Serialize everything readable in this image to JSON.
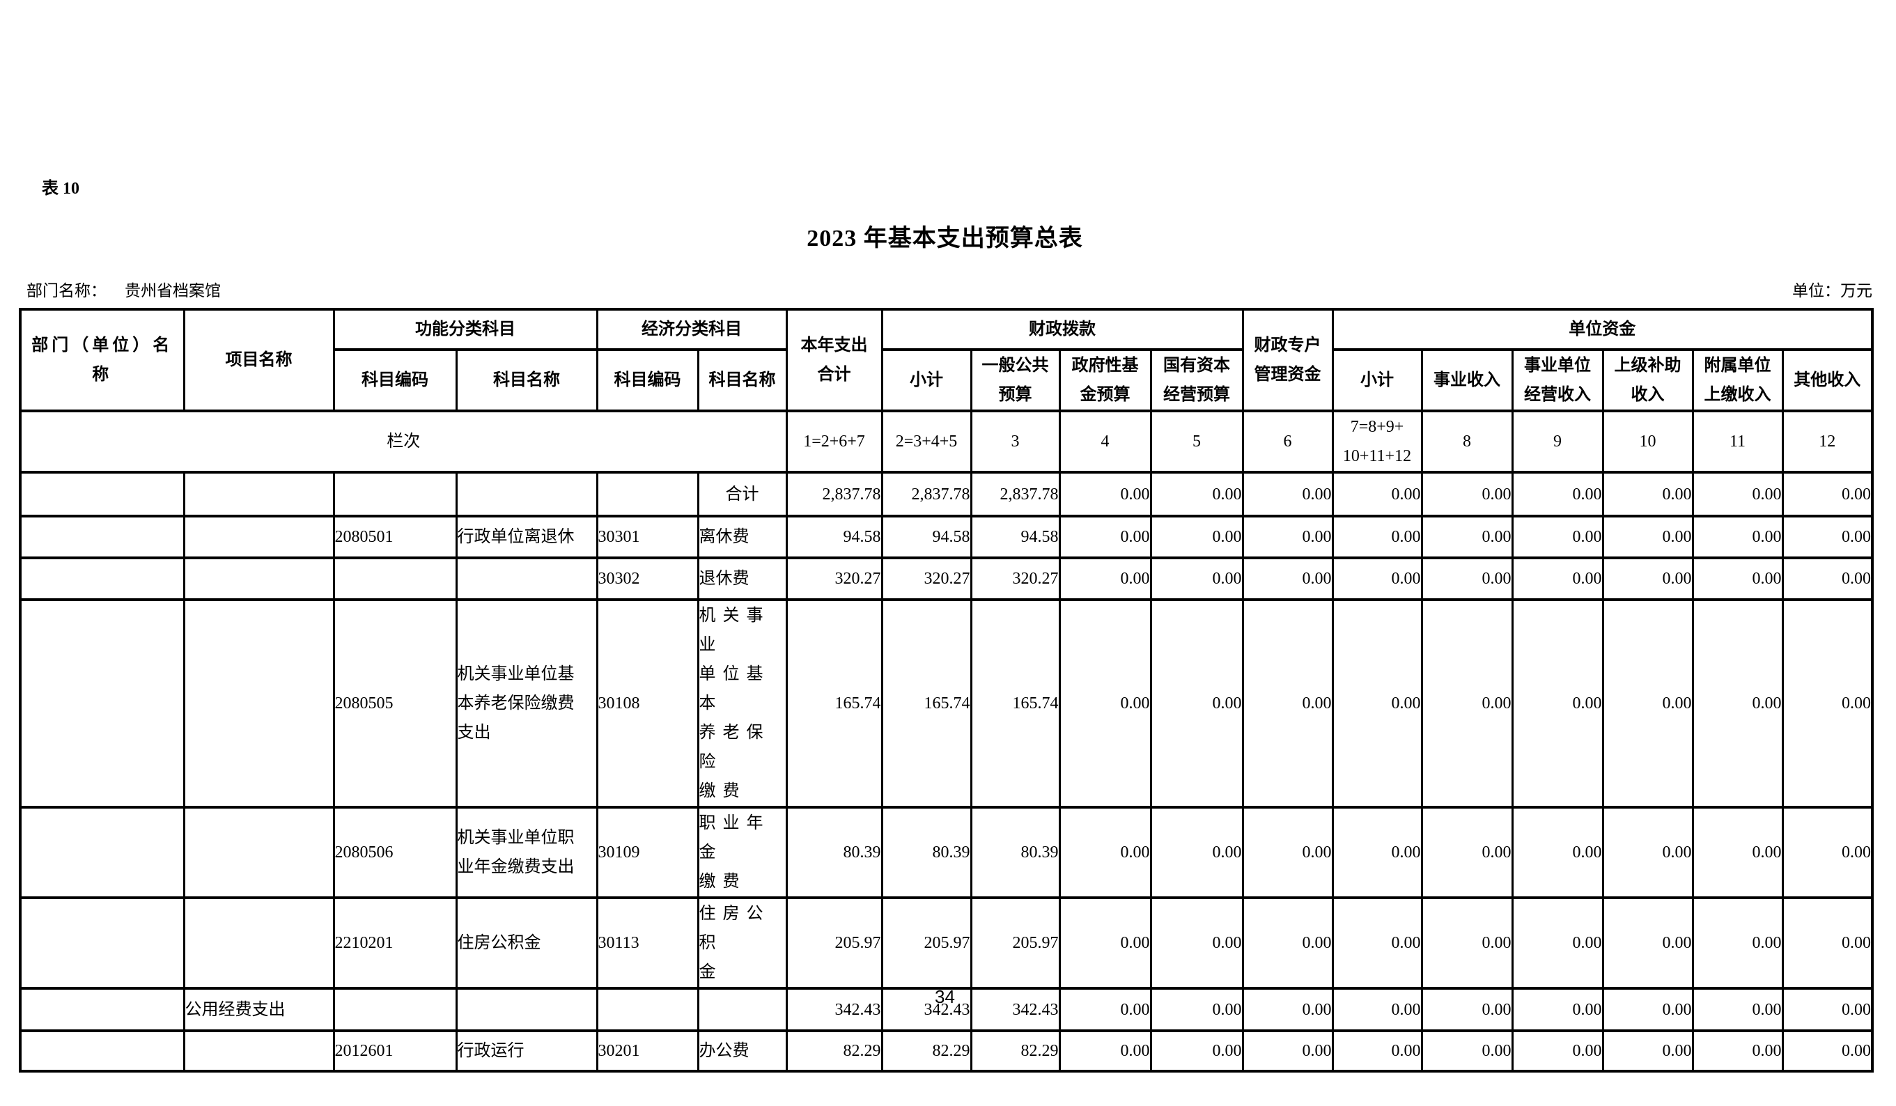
{
  "page": {
    "table_label": "表 10",
    "title": "2023 年基本支出预算总表",
    "department_label": "部门名称：",
    "department_name": "贵州省档案馆",
    "unit_label": "单位：万元",
    "page_number": "34"
  },
  "table": {
    "header": {
      "col_department": "部门（单位）名称",
      "col_project": "项目名称",
      "group_functional": "功能分类科目",
      "group_economic": "经济分类科目",
      "col_code_functional": "科目编码",
      "col_name_functional": "科目名称",
      "col_code_economic": "科目编码",
      "col_name_economic": "科目名称",
      "col_year_total": "本年支出\n合计",
      "group_fiscal": "财政拨款",
      "fiscal_subtotal": "小计",
      "fiscal_general_budget": "一般公共\n预算",
      "fiscal_gov_fund_budget": "政府性基\n金预算",
      "fiscal_state_capital_budget": "国有资本\n经营预算",
      "col_special_account": "财政专户\n管理资金",
      "group_unit_funds": "单位资金",
      "unit_subtotal": "小计",
      "unit_business_income": "事业收入",
      "unit_business_operating_income": "事业单位\n经营收入",
      "unit_superior_subsidy_income": "上级补助\n收入",
      "unit_affiliated_remit_income": "附属单位\n上缴收入",
      "unit_other_income": "其他收入"
    },
    "index_row": {
      "label": "栏次",
      "cols": [
        "1=2+6+7",
        "2=3+4+5",
        "3",
        "4",
        "5",
        "6",
        "7=8+9+\n10+11+12",
        "8",
        "9",
        "10",
        "11",
        "12"
      ]
    },
    "rows": [
      [
        "",
        "",
        "",
        "",
        "",
        "合计",
        "2,837.78",
        "2,837.78",
        "2,837.78",
        "0.00",
        "0.00",
        "0.00",
        "0.00",
        "0.00",
        "0.00",
        "0.00",
        "0.00",
        "0.00"
      ],
      [
        "",
        "",
        "2080501",
        "行政单位离退休",
        "30301",
        "离休费",
        "94.58",
        "94.58",
        "94.58",
        "0.00",
        "0.00",
        "0.00",
        "0.00",
        "0.00",
        "0.00",
        "0.00",
        "0.00",
        "0.00"
      ],
      [
        "",
        "",
        "",
        "",
        "30302",
        "退休费",
        "320.27",
        "320.27",
        "320.27",
        "0.00",
        "0.00",
        "0.00",
        "0.00",
        "0.00",
        "0.00",
        "0.00",
        "0.00",
        "0.00"
      ],
      [
        "",
        "",
        "2080505",
        "机关事业单位基\n本养老保险缴费\n支出",
        "30108",
        "机关事业\n单位基本\n养老保险\n缴费",
        "165.74",
        "165.74",
        "165.74",
        "0.00",
        "0.00",
        "0.00",
        "0.00",
        "0.00",
        "0.00",
        "0.00",
        "0.00",
        "0.00"
      ],
      [
        "",
        "",
        "2080506",
        "机关事业单位职\n业年金缴费支出",
        "30109",
        "职业年金\n缴费",
        "80.39",
        "80.39",
        "80.39",
        "0.00",
        "0.00",
        "0.00",
        "0.00",
        "0.00",
        "0.00",
        "0.00",
        "0.00",
        "0.00"
      ],
      [
        "",
        "",
        "2210201",
        "住房公积金",
        "30113",
        "住房公积\n金",
        "205.97",
        "205.97",
        "205.97",
        "0.00",
        "0.00",
        "0.00",
        "0.00",
        "0.00",
        "0.00",
        "0.00",
        "0.00",
        "0.00"
      ],
      [
        "",
        "公用经费支出",
        "",
        "",
        "",
        "",
        "342.43",
        "342.43",
        "342.43",
        "0.00",
        "0.00",
        "0.00",
        "0.00",
        "0.00",
        "0.00",
        "0.00",
        "0.00",
        "0.00"
      ],
      [
        "",
        "",
        "2012601",
        "行政运行",
        "30201",
        "办公费",
        "82.29",
        "82.29",
        "82.29",
        "0.00",
        "0.00",
        "0.00",
        "0.00",
        "0.00",
        "0.00",
        "0.00",
        "0.00",
        "0.00"
      ]
    ]
  }
}
